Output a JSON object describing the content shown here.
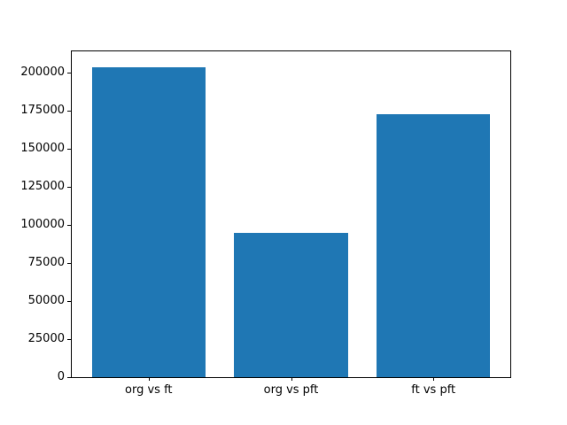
{
  "chart_data": {
    "type": "bar",
    "title": "",
    "xlabel": "",
    "ylabel": "",
    "categories": [
      "org vs ft",
      "org vs pft",
      "ft vs pft"
    ],
    "values": [
      204000,
      95000,
      173000
    ],
    "bar_color": "#1f77b4",
    "axis_color": "#000000",
    "background_color": "#ffffff",
    "ylim": [
      0,
      214200
    ],
    "xlim": [
      -0.54,
      2.54
    ],
    "bar_width": 0.8,
    "yticks": [
      0,
      25000,
      50000,
      75000,
      100000,
      125000,
      150000,
      175000,
      200000
    ],
    "ytick_labels": [
      "0",
      "25000",
      "50000",
      "75000",
      "100000",
      "125000",
      "150000",
      "175000",
      "200000"
    ],
    "grid": false,
    "legend": false
  }
}
